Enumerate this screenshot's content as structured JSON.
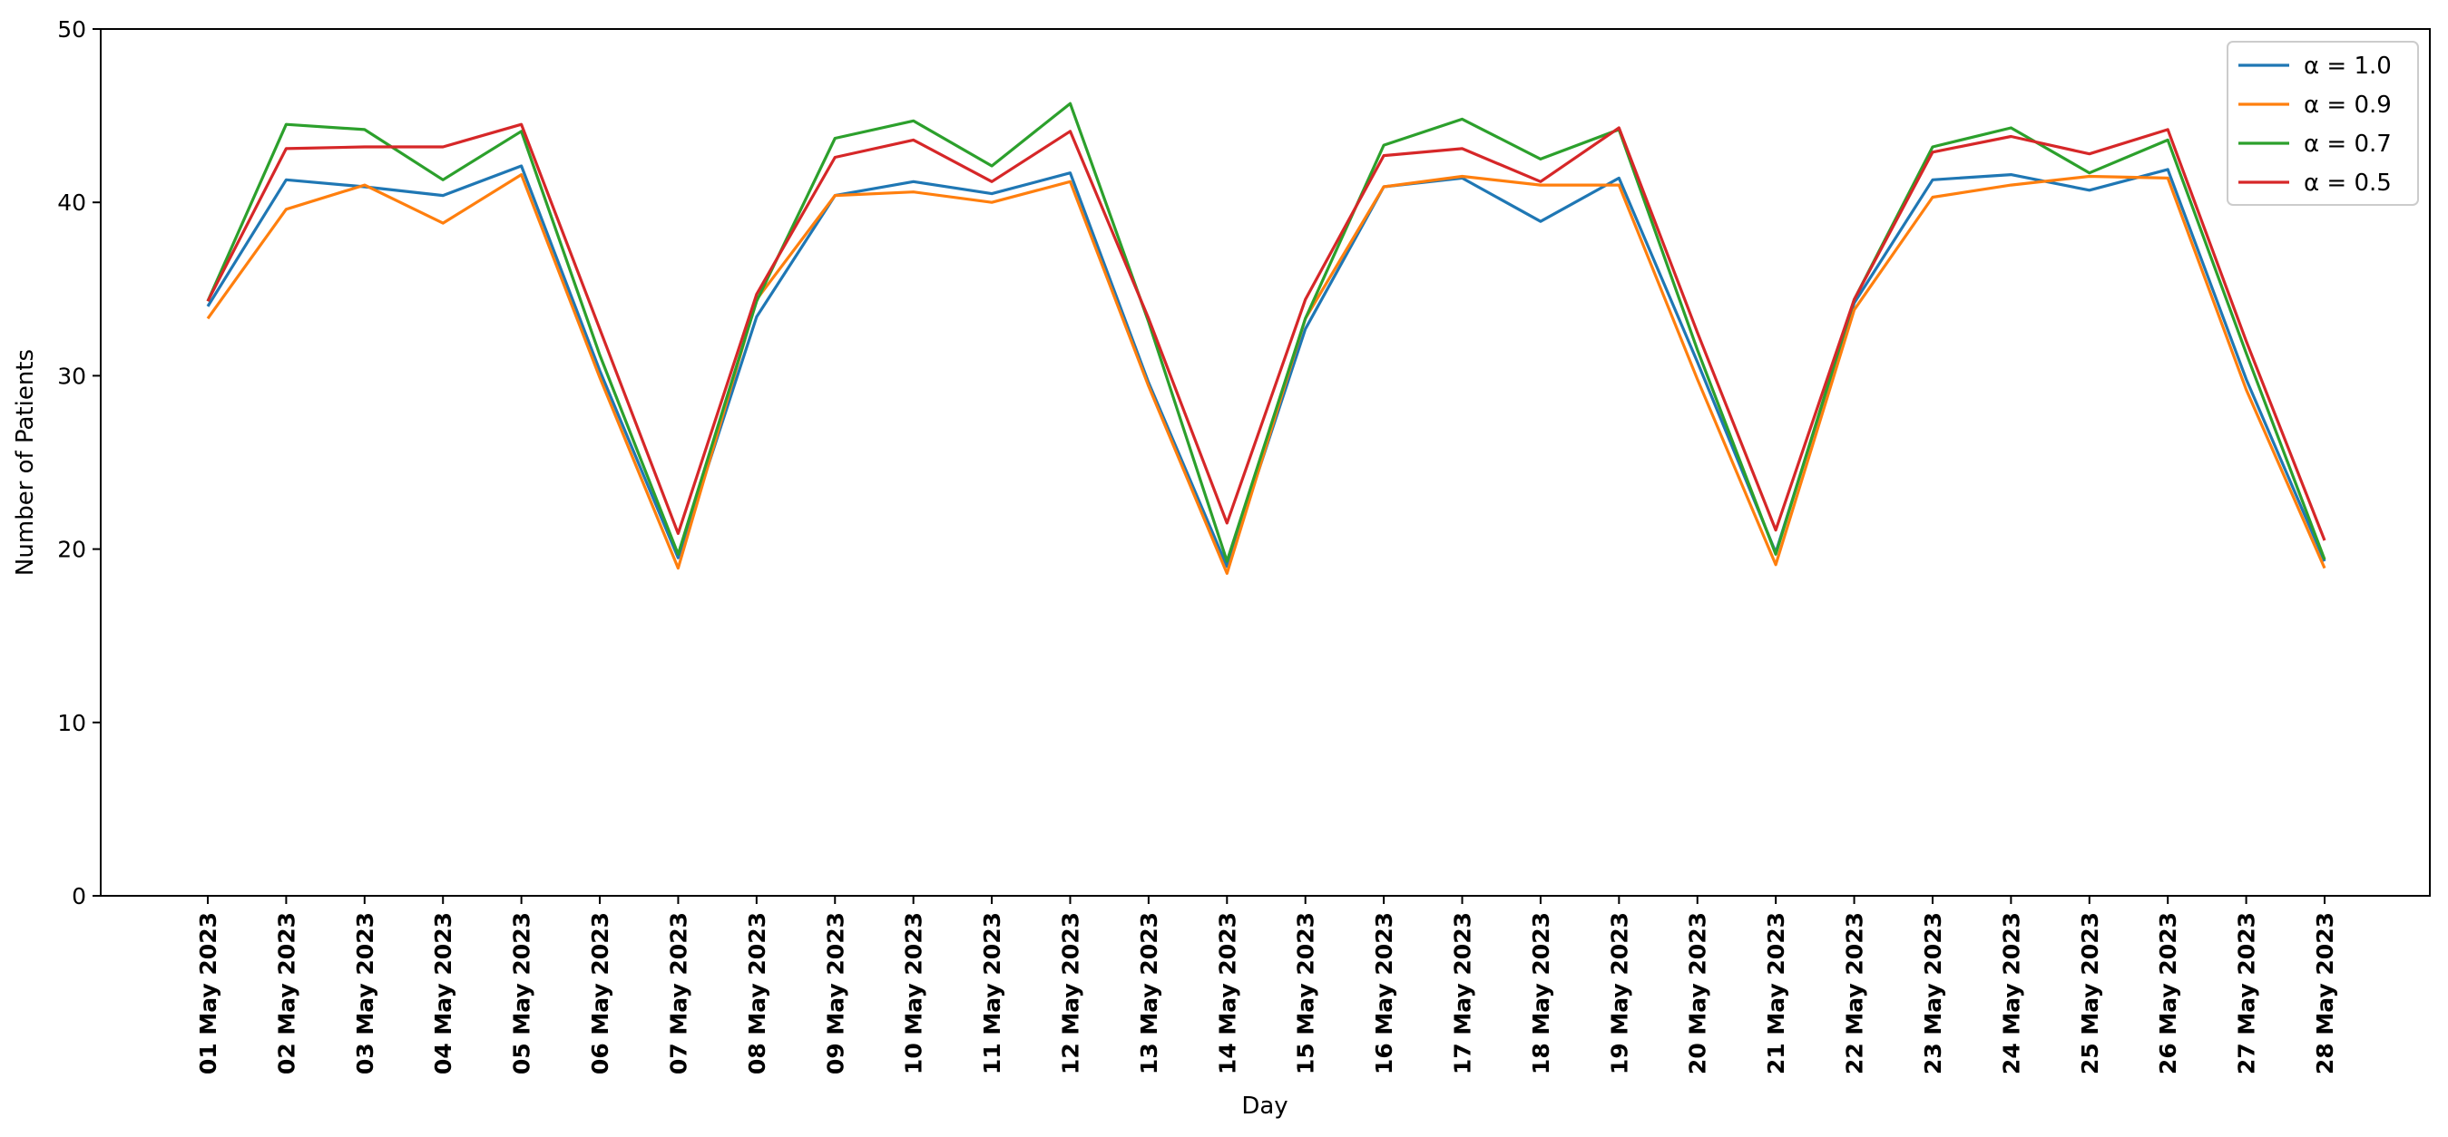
{
  "chart_data": {
    "type": "line",
    "title": "",
    "xlabel": "Day",
    "ylabel": "Number of Patients",
    "ylim": [
      0,
      50
    ],
    "yticks": [
      0,
      10,
      20,
      30,
      40,
      50
    ],
    "grid": false,
    "legend_position": "top-right",
    "x": [
      "01 May 2023",
      "02 May 2023",
      "03 May 2023",
      "04 May 2023",
      "05 May 2023",
      "06 May 2023",
      "07 May 2023",
      "08 May 2023",
      "09 May 2023",
      "10 May 2023",
      "11 May 2023",
      "12 May 2023",
      "13 May 2023",
      "14 May 2023",
      "15 May 2023",
      "16 May 2023",
      "17 May 2023",
      "18 May 2023",
      "19 May 2023",
      "20 May 2023",
      "21 May 2023",
      "22 May 2023",
      "23 May 2023",
      "24 May 2023",
      "25 May 2023",
      "26 May 2023",
      "27 May 2023",
      "28 May 2023"
    ],
    "series": [
      {
        "name": "α = 1.0",
        "color": "#1f77b4",
        "values": [
          34.0,
          41.3,
          40.9,
          40.4,
          42.1,
          30.3,
          19.5,
          33.4,
          40.4,
          41.2,
          40.5,
          41.7,
          29.6,
          19.0,
          32.7,
          40.9,
          41.4,
          38.9,
          41.4,
          30.8,
          19.8,
          34.2,
          41.3,
          41.6,
          40.7,
          41.9,
          29.8,
          19.3
        ]
      },
      {
        "name": "α = 0.9",
        "color": "#ff7f0e",
        "values": [
          33.3,
          39.6,
          41.0,
          38.8,
          41.6,
          29.9,
          18.9,
          34.4,
          40.4,
          40.6,
          40.0,
          41.2,
          29.4,
          18.6,
          33.3,
          40.9,
          41.5,
          41.0,
          41.0,
          29.8,
          19.1,
          33.8,
          40.3,
          41.0,
          41.5,
          41.4,
          29.2,
          18.9
        ]
      },
      {
        "name": "α = 0.7",
        "color": "#2ca02c",
        "values": [
          34.3,
          44.5,
          44.2,
          41.3,
          44.1,
          31.2,
          19.7,
          34.3,
          43.7,
          44.7,
          42.1,
          45.7,
          33.1,
          19.3,
          33.3,
          43.3,
          44.8,
          42.5,
          44.2,
          31.5,
          19.7,
          34.4,
          43.2,
          44.3,
          41.7,
          43.6,
          31.3,
          19.4
        ]
      },
      {
        "name": "α = 0.5",
        "color": "#d62728",
        "values": [
          34.3,
          43.1,
          43.2,
          43.2,
          44.5,
          32.7,
          20.9,
          34.7,
          42.6,
          43.6,
          41.2,
          44.1,
          33.3,
          21.5,
          34.4,
          42.7,
          43.1,
          41.2,
          44.3,
          32.5,
          21.1,
          34.4,
          42.9,
          43.8,
          42.8,
          44.2,
          32.0,
          20.5
        ]
      }
    ]
  }
}
